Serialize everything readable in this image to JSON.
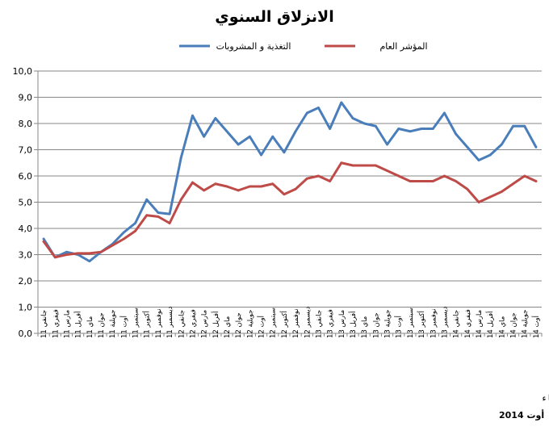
{
  "chart_data": {
    "type": "line",
    "title": "الانزلاق السنوي",
    "xlabel": "",
    "ylabel": "",
    "ylim": [
      0,
      10
    ],
    "y_ticks": [
      "0,0",
      "1,0",
      "2,0",
      "3,0",
      "4,0",
      "5,0",
      "6,0",
      "7,0",
      "8,0",
      "9,0",
      "10,0"
    ],
    "grid": true,
    "legend_position": "top",
    "categories": [
      "جانفي 11",
      "فيفري 11",
      "مارس 11",
      "أفريل 11",
      "ماي 11",
      "جوان 11",
      "جويلية 11",
      "أوت 11",
      "سبتمبر 11",
      "أكتوبر 11",
      "نوفمبر 11",
      "ديسمبر 11",
      "جانفي 12",
      "فيفري 12",
      "مارس 12",
      "أفريل 12",
      "ماي 12",
      "جوان 12",
      "جويلية 12",
      "أوت 12",
      "سبتمبر 12",
      "أكتوبر 12",
      "نوفمبر 12",
      "ديسمبر 12",
      "جانفي 13",
      "فيفري 13",
      "مارس 13",
      "أفريل 13",
      "ماي 13",
      "جوان 13",
      "جويلية 13",
      "أوت 13",
      "سبتمبر 13",
      "أكتوبر 13",
      "نوفمبر 13",
      "ديسمبر 13",
      "جانفي 14",
      "فيفري 14",
      "مارس 14",
      "أفريل 14",
      "ماي 14",
      "جوان 14",
      "جويلية 14",
      "أوت 14"
    ],
    "series": [
      {
        "name": "التغذية و المشروبات",
        "color": "#4a7ebb",
        "values": [
          3.6,
          2.9,
          3.1,
          3.0,
          2.75,
          3.1,
          3.4,
          3.85,
          4.2,
          5.1,
          4.6,
          4.55,
          6.7,
          8.3,
          7.5,
          8.2,
          7.7,
          7.2,
          7.5,
          6.8,
          7.5,
          6.9,
          7.7,
          8.4,
          8.6,
          7.8,
          8.8,
          8.2,
          8.0,
          7.9,
          7.2,
          7.8,
          7.7,
          7.8,
          7.8,
          8.4,
          7.6,
          7.1,
          6.6,
          6.8,
          7.2,
          7.9,
          7.9,
          7.1
        ]
      },
      {
        "name": "المؤشر العام",
        "color": "#be4b48",
        "values": [
          3.5,
          2.9,
          3.0,
          3.05,
          3.05,
          3.1,
          3.35,
          3.6,
          3.9,
          4.5,
          4.45,
          4.2,
          5.1,
          5.75,
          5.45,
          5.7,
          5.6,
          5.45,
          5.6,
          5.6,
          5.7,
          5.3,
          5.5,
          5.9,
          6.0,
          5.8,
          6.5,
          6.4,
          6.4,
          6.4,
          6.2,
          6.0,
          5.8,
          5.8,
          5.8,
          6.0,
          5.8,
          5.5,
          5.0,
          5.2,
          5.4,
          5.7,
          6.0,
          5.8
        ]
      }
    ]
  },
  "footer": {
    "source": "المصدر: المعهد الوطني للاحصاء",
    "date": "أوت 2014"
  }
}
